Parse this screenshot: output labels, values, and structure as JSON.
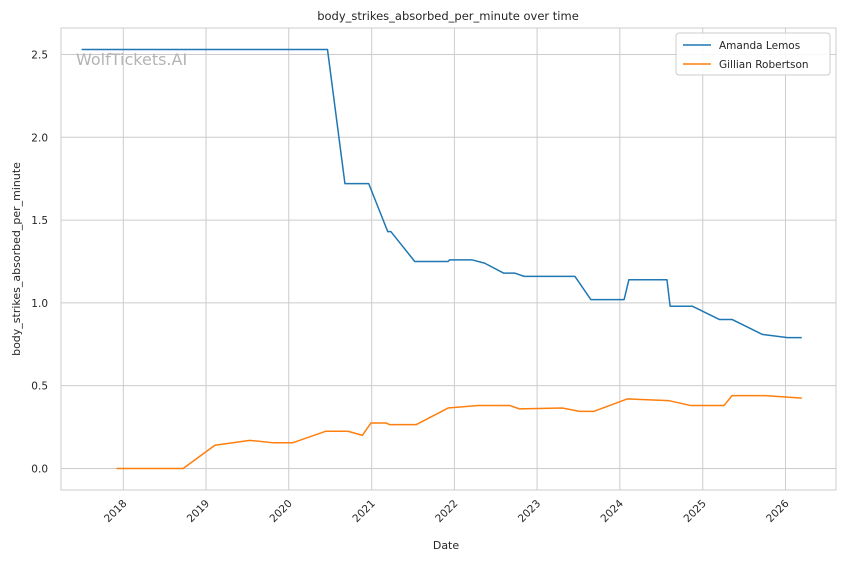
{
  "chart_data": {
    "type": "line",
    "title": "body_strikes_absorbed_per_minute over time",
    "xlabel": "Date",
    "ylabel": "body_strikes_absorbed_per_minute",
    "watermark": "WolfTickets.AI",
    "xlim": [
      "2017-04-01",
      "2026-08-12"
    ],
    "ylim": [
      -0.13,
      2.66
    ],
    "x_ticks": [
      "2018",
      "2019",
      "2020",
      "2021",
      "2022",
      "2023",
      "2024",
      "2025",
      "2026"
    ],
    "y_ticks": [
      "0.0",
      "0.5",
      "1.0",
      "1.5",
      "2.0",
      "2.5"
    ],
    "grid": true,
    "legend_position": "top-right",
    "series": [
      {
        "name": "Amanda Lemos",
        "color": "#1f77b4",
        "points": [
          [
            "2017-07-01",
            2.53
          ],
          [
            "2020-06-20",
            2.53
          ],
          [
            "2020-09-05",
            1.72
          ],
          [
            "2020-12-19",
            1.72
          ],
          [
            "2021-03-13",
            1.43
          ],
          [
            "2021-03-27",
            1.43
          ],
          [
            "2021-07-10",
            1.25
          ],
          [
            "2021-12-04",
            1.25
          ],
          [
            "2021-12-11",
            1.26
          ],
          [
            "2022-03-19",
            1.26
          ],
          [
            "2022-05-14",
            1.24
          ],
          [
            "2022-08-06",
            1.18
          ],
          [
            "2022-09-24",
            1.18
          ],
          [
            "2022-11-05",
            1.16
          ],
          [
            "2023-06-17",
            1.16
          ],
          [
            "2023-08-26",
            1.02
          ],
          [
            "2024-01-20",
            1.02
          ],
          [
            "2024-02-10",
            1.14
          ],
          [
            "2024-07-27",
            1.14
          ],
          [
            "2024-08-10",
            0.98
          ],
          [
            "2024-11-16",
            0.98
          ],
          [
            "2025-03-15",
            0.9
          ],
          [
            "2025-05-10",
            0.9
          ],
          [
            "2025-09-20",
            0.81
          ],
          [
            "2026-01-10",
            0.79
          ],
          [
            "2026-03-14",
            0.79
          ]
        ]
      },
      {
        "name": "Gillian Robertson",
        "color": "#ff7f0e",
        "points": [
          [
            "2017-12-02",
            0.0
          ],
          [
            "2018-09-22",
            0.0
          ],
          [
            "2019-02-09",
            0.14
          ],
          [
            "2019-07-13",
            0.17
          ],
          [
            "2019-10-26",
            0.155
          ],
          [
            "2020-01-18",
            0.155
          ],
          [
            "2020-06-13",
            0.225
          ],
          [
            "2020-09-19",
            0.225
          ],
          [
            "2020-11-21",
            0.2
          ],
          [
            "2020-12-29",
            0.275
          ],
          [
            "2021-03-06",
            0.275
          ],
          [
            "2021-03-20",
            0.265
          ],
          [
            "2021-07-17",
            0.265
          ],
          [
            "2021-12-04",
            0.365
          ],
          [
            "2022-04-16",
            0.38
          ],
          [
            "2022-09-03",
            0.38
          ],
          [
            "2022-10-15",
            0.36
          ],
          [
            "2023-04-22",
            0.365
          ],
          [
            "2023-07-08",
            0.345
          ],
          [
            "2023-09-09",
            0.345
          ],
          [
            "2024-02-03",
            0.42
          ],
          [
            "2024-08-03",
            0.41
          ],
          [
            "2024-11-09",
            0.38
          ],
          [
            "2025-04-05",
            0.38
          ],
          [
            "2025-05-10",
            0.44
          ],
          [
            "2025-10-04",
            0.44
          ],
          [
            "2026-03-14",
            0.425
          ]
        ]
      }
    ]
  }
}
